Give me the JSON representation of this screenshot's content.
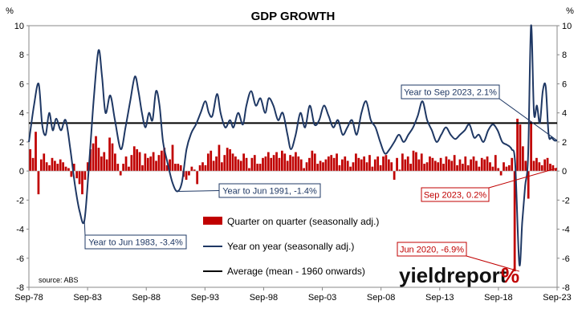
{
  "chart_data": {
    "type": "bar+line",
    "title": "GDP GROWTH",
    "y_unit_left": "%",
    "y_unit_right": "%",
    "ylim": [
      -8,
      10
    ],
    "yticks": [
      "10",
      "8",
      "6",
      "4",
      "2",
      "0",
      "-2",
      "-4",
      "-6",
      "-8"
    ],
    "xtick_labels": [
      "Sep-78",
      "Sep-83",
      "Sep-88",
      "Sep-93",
      "Sep-98",
      "Sep-03",
      "Sep-08",
      "Sep-13",
      "Sep-18",
      "Sep-23"
    ],
    "xtick_years": [
      1978.67,
      1983.67,
      1988.67,
      1993.67,
      1998.67,
      2003.67,
      2008.67,
      2013.67,
      2018.67,
      2023.67
    ],
    "x_start": 1978.67,
    "x_end": 2023.67,
    "grid": false,
    "average": 3.3,
    "colors": {
      "bar": "#c00000",
      "line": "#1f3864",
      "average": "#000000",
      "annotation_blue": "#1f3864",
      "annotation_red": "#c00000",
      "logo_green": "#2e7d32"
    },
    "series": [
      {
        "name": "Quarter on quarter (seasonally adj.)",
        "kind": "bar",
        "values": [
          1.5,
          0.9,
          2.7,
          -1.6,
          0.8,
          1.2,
          0.6,
          0.4,
          0.9,
          0.7,
          0.5,
          0.8,
          0.6,
          0.3,
          0.2,
          -0.4,
          0.5,
          -0.5,
          -0.9,
          -1.6,
          -0.6,
          0.6,
          1.5,
          1.9,
          2.4,
          1.6,
          1.0,
          1.3,
          0.8,
          2.3,
          1.9,
          1.2,
          0.5,
          -0.3,
          0.5,
          1.0,
          0.3,
          1.1,
          1.7,
          1.5,
          1.3,
          0.4,
          1.2,
          0.9,
          1.0,
          1.3,
          0.7,
          1.1,
          1.4,
          1.6,
          0.4,
          0.8,
          1.8,
          0.5,
          0.5,
          0.4,
          -0.4,
          -0.6,
          -0.3,
          0.3,
          0.1,
          -0.9,
          0.4,
          0.6,
          0.4,
          1.2,
          1.4,
          0.7,
          1.0,
          1.8,
          0.6,
          1.1,
          1.6,
          1.5,
          1.2,
          1.0,
          0.8,
          0.7,
          1.2,
          0.9,
          0.2,
          0.9,
          1.1,
          0.5,
          0.5,
          0.9,
          1.0,
          1.3,
          0.9,
          1.1,
          1.3,
          0.9,
          1.4,
          1.2,
          0.7,
          1.1,
          1.0,
          1.3,
          1.0,
          0.8,
          0.2,
          0.6,
          0.9,
          1.4,
          1.2,
          0.5,
          0.7,
          0.6,
          0.8,
          1.0,
          1.1,
          0.9,
          1.2,
          0.4,
          0.8,
          1.0,
          0.7,
          0.3,
          0.6,
          1.2,
          0.9,
          0.8,
          1.0,
          0.6,
          1.1,
          0.3,
          0.8,
          1.0,
          0.4,
          1.0,
          1.1,
          0.8,
          0.6,
          -0.6,
          0.9,
          0.1,
          1.2,
          0.8,
          1.0,
          0.5,
          1.4,
          1.3,
          0.8,
          1.2,
          0.5,
          0.6,
          1.0,
          0.9,
          0.7,
          0.6,
          0.9,
          0.5,
          1.0,
          0.8,
          0.7,
          1.1,
          0.4,
          0.8,
          0.5,
          1.0,
          0.4,
          0.8,
          1.0,
          0.7,
          0.3,
          0.9,
          0.8,
          1.0,
          0.6,
          0.3,
          1.1,
          0.2,
          -0.3,
          0.6,
          0.3,
          0.4,
          0.9,
          -6.9,
          3.6,
          3.2,
          1.7,
          0.7,
          -1.9,
          3.4,
          0.7,
          0.9,
          0.6,
          0.4,
          0.8,
          0.9,
          0.5,
          0.4,
          0.2
        ]
      },
      {
        "name": "Year on year (seasonally adj.)",
        "kind": "line",
        "points": [
          [
            1978.67,
            2.0
          ],
          [
            1979.1,
            4.5
          ],
          [
            1979.5,
            6.0
          ],
          [
            1979.8,
            3.2
          ],
          [
            1980.1,
            2.5
          ],
          [
            1980.4,
            4.0
          ],
          [
            1980.7,
            2.8
          ],
          [
            1981.0,
            3.6
          ],
          [
            1981.4,
            2.8
          ],
          [
            1981.8,
            3.5
          ],
          [
            1982.2,
            1.5
          ],
          [
            1982.6,
            -1.0
          ],
          [
            1983.0,
            -2.8
          ],
          [
            1983.4,
            -3.4
          ],
          [
            1983.8,
            0.5
          ],
          [
            1984.2,
            5.0
          ],
          [
            1984.6,
            8.3
          ],
          [
            1984.9,
            6.5
          ],
          [
            1985.2,
            4.0
          ],
          [
            1985.6,
            5.2
          ],
          [
            1986.0,
            3.5
          ],
          [
            1986.5,
            1.5
          ],
          [
            1986.9,
            3.0
          ],
          [
            1987.3,
            4.8
          ],
          [
            1987.7,
            6.5
          ],
          [
            1988.0,
            5.5
          ],
          [
            1988.3,
            4.0
          ],
          [
            1988.6,
            3.0
          ],
          [
            1988.9,
            4.0
          ],
          [
            1989.2,
            3.5
          ],
          [
            1989.5,
            5.5
          ],
          [
            1989.8,
            4.5
          ],
          [
            1990.1,
            2.0
          ],
          [
            1990.5,
            0.5
          ],
          [
            1990.9,
            -0.8
          ],
          [
            1991.3,
            -1.4
          ],
          [
            1991.7,
            -0.8
          ],
          [
            1992.1,
            1.5
          ],
          [
            1992.5,
            2.6
          ],
          [
            1992.9,
            3.2
          ],
          [
            1993.3,
            4.0
          ],
          [
            1993.7,
            4.8
          ],
          [
            1994.0,
            4.0
          ],
          [
            1994.3,
            3.8
          ],
          [
            1994.7,
            5.3
          ],
          [
            1995.0,
            4.0
          ],
          [
            1995.4,
            3.0
          ],
          [
            1995.8,
            3.5
          ],
          [
            1996.1,
            3.0
          ],
          [
            1996.5,
            4.0
          ],
          [
            1996.9,
            3.2
          ],
          [
            1997.2,
            4.5
          ],
          [
            1997.6,
            5.5
          ],
          [
            1998.0,
            4.5
          ],
          [
            1998.4,
            5.0
          ],
          [
            1998.8,
            4.0
          ],
          [
            1999.1,
            5.0
          ],
          [
            1999.5,
            4.5
          ],
          [
            1999.9,
            3.5
          ],
          [
            2000.3,
            4.0
          ],
          [
            2000.7,
            2.5
          ],
          [
            2001.0,
            1.5
          ],
          [
            2001.4,
            2.5
          ],
          [
            2001.8,
            4.0
          ],
          [
            2002.2,
            3.0
          ],
          [
            2002.6,
            4.5
          ],
          [
            2003.0,
            3.2
          ],
          [
            2003.4,
            3.5
          ],
          [
            2003.8,
            4.5
          ],
          [
            2004.2,
            3.8
          ],
          [
            2004.6,
            3.0
          ],
          [
            2005.0,
            3.5
          ],
          [
            2005.4,
            2.5
          ],
          [
            2005.8,
            3.0
          ],
          [
            2006.2,
            3.5
          ],
          [
            2006.6,
            2.5
          ],
          [
            2007.0,
            4.0
          ],
          [
            2007.4,
            4.8
          ],
          [
            2007.8,
            3.5
          ],
          [
            2008.2,
            3.0
          ],
          [
            2008.6,
            2.0
          ],
          [
            2009.0,
            1.2
          ],
          [
            2009.4,
            1.5
          ],
          [
            2009.8,
            2.0
          ],
          [
            2010.2,
            2.5
          ],
          [
            2010.6,
            2.0
          ],
          [
            2011.0,
            2.5
          ],
          [
            2011.4,
            3.0
          ],
          [
            2011.8,
            3.8
          ],
          [
            2012.2,
            4.8
          ],
          [
            2012.6,
            3.5
          ],
          [
            2013.0,
            2.8
          ],
          [
            2013.4,
            2.0
          ],
          [
            2013.8,
            2.5
          ],
          [
            2014.2,
            3.0
          ],
          [
            2014.6,
            2.5
          ],
          [
            2015.0,
            2.2
          ],
          [
            2015.4,
            2.5
          ],
          [
            2015.8,
            2.8
          ],
          [
            2016.2,
            3.2
          ],
          [
            2016.6,
            2.3
          ],
          [
            2017.0,
            2.5
          ],
          [
            2017.4,
            2.0
          ],
          [
            2017.8,
            2.8
          ],
          [
            2018.2,
            3.2
          ],
          [
            2018.6,
            2.8
          ],
          [
            2019.0,
            2.0
          ],
          [
            2019.4,
            1.8
          ],
          [
            2019.8,
            1.5
          ],
          [
            2020.1,
            0.5
          ],
          [
            2020.45,
            -6.4
          ],
          [
            2020.7,
            -3.5
          ],
          [
            2020.95,
            -1.0
          ],
          [
            2021.2,
            1.0
          ],
          [
            2021.45,
            10.0
          ],
          [
            2021.7,
            4.0
          ],
          [
            2021.95,
            4.5
          ],
          [
            2022.2,
            3.3
          ],
          [
            2022.45,
            5.5
          ],
          [
            2022.7,
            5.8
          ],
          [
            2022.95,
            2.5
          ],
          [
            2023.2,
            2.3
          ],
          [
            2023.45,
            2.1
          ],
          [
            2023.67,
            2.1
          ]
        ]
      },
      {
        "name": "Average (mean - 1960 onwards)",
        "kind": "hline",
        "value": 3.3
      }
    ],
    "annotations": [
      {
        "text": "Year to Sep 2023, 2.1%",
        "color": "annotation_blue",
        "x": 2023.67,
        "y": 2.1
      },
      {
        "text": "Year to Jun 1991, -1.4%",
        "color": "annotation_blue",
        "x": 1991.3,
        "y": -1.4
      },
      {
        "text": "Year to Jun 1983, -3.4%",
        "color": "annotation_blue",
        "x": 1983.4,
        "y": -3.4
      },
      {
        "text": "Sep 2023, 0.2%",
        "color": "annotation_red",
        "x": 2023.67,
        "y": 0.2
      },
      {
        "text": "Jun 2020, -6.9%",
        "color": "annotation_red",
        "x": 2020.45,
        "y": -6.9
      }
    ],
    "source": "source: ABS",
    "logo": {
      "text": "yieldreport",
      "symbol": "%"
    }
  }
}
